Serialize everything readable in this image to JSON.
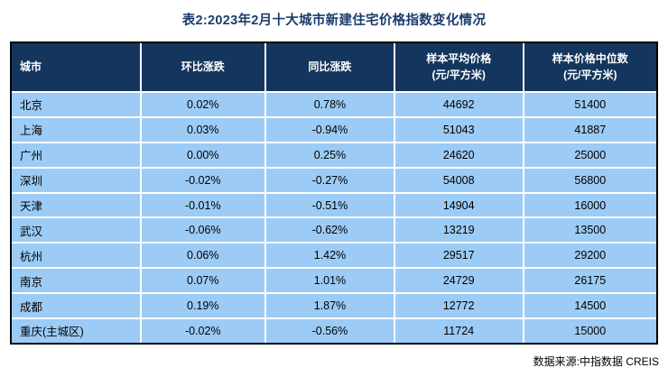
{
  "title": "表2:2023年2月十大城市新建住宅价格指数变化情况",
  "source": "数据来源:中指数据 CREIS",
  "colors": {
    "title_text": "#1B3C6D",
    "header_bg": "#14365E",
    "header_text": "#FFFFFF",
    "row_bg": "#9CCBF5",
    "cell_text": "#000000",
    "divider": "#FFFFFF",
    "outer_border": "#000000"
  },
  "chart_data": {
    "type": "table",
    "title": "表2:2023年2月十大城市新建住宅价格指数变化情况",
    "source": "数据来源:中指数据 CREIS",
    "columns": [
      {
        "label": "城市",
        "sub": ""
      },
      {
        "label": "环比涨跌",
        "sub": ""
      },
      {
        "label": "同比涨跌",
        "sub": ""
      },
      {
        "label": "样本平均价格",
        "sub": "(元/平方米)"
      },
      {
        "label": "样本价格中位数",
        "sub": "(元/平方米)"
      }
    ],
    "rows": [
      {
        "city": "北京",
        "mom": "0.02%",
        "yoy": "0.78%",
        "avg_price": "44692",
        "median_price": "51400"
      },
      {
        "city": "上海",
        "mom": "0.03%",
        "yoy": "-0.94%",
        "avg_price": "51043",
        "median_price": "41887"
      },
      {
        "city": "广州",
        "mom": "0.00%",
        "yoy": "0.25%",
        "avg_price": "24620",
        "median_price": "25000"
      },
      {
        "city": "深圳",
        "mom": "-0.02%",
        "yoy": "-0.27%",
        "avg_price": "54008",
        "median_price": "56800"
      },
      {
        "city": "天津",
        "mom": "-0.01%",
        "yoy": "-0.51%",
        "avg_price": "14904",
        "median_price": "16000"
      },
      {
        "city": "武汉",
        "mom": "-0.06%",
        "yoy": "-0.62%",
        "avg_price": "13219",
        "median_price": "13500"
      },
      {
        "city": "杭州",
        "mom": "0.06%",
        "yoy": "1.42%",
        "avg_price": "29517",
        "median_price": "29200"
      },
      {
        "city": "南京",
        "mom": "0.07%",
        "yoy": "1.01%",
        "avg_price": "24729",
        "median_price": "26175"
      },
      {
        "city": "成都",
        "mom": "0.19%",
        "yoy": "1.87%",
        "avg_price": "12772",
        "median_price": "14500"
      },
      {
        "city": "重庆(主城区)",
        "mom": "-0.02%",
        "yoy": "-0.56%",
        "avg_price": "11724",
        "median_price": "15000"
      }
    ]
  }
}
